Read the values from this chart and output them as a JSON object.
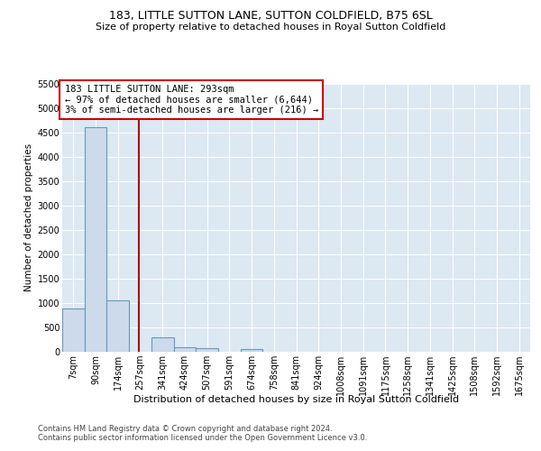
{
  "title1": "183, LITTLE SUTTON LANE, SUTTON COLDFIELD, B75 6SL",
  "title2": "Size of property relative to detached houses in Royal Sutton Coldfield",
  "xlabel": "Distribution of detached houses by size in Royal Sutton Coldfield",
  "ylabel": "Number of detached properties",
  "footnote1": "Contains HM Land Registry data © Crown copyright and database right 2024.",
  "footnote2": "Contains public sector information licensed under the Open Government Licence v3.0.",
  "annotation_line1": "183 LITTLE SUTTON LANE: 293sqm",
  "annotation_line2": "← 97% of detached houses are smaller (6,644)",
  "annotation_line3": "3% of semi-detached houses are larger (216) →",
  "ylim": [
    0,
    5500
  ],
  "bar_color": "#ccdaeb",
  "bar_edge_color": "#6699bb",
  "red_line_color": "#aa0000",
  "annotation_box_edge_color": "#cc0000",
  "background_color": "#dce8f2",
  "grid_color": "#ffffff",
  "categories": [
    "7sqm",
    "90sqm",
    "174sqm",
    "257sqm",
    "341sqm",
    "424sqm",
    "507sqm",
    "591sqm",
    "674sqm",
    "758sqm",
    "841sqm",
    "924sqm",
    "1008sqm",
    "1091sqm",
    "1175sqm",
    "1258sqm",
    "1341sqm",
    "1425sqm",
    "1508sqm",
    "1592sqm",
    "1675sqm"
  ],
  "bar_values": [
    880,
    4600,
    1060,
    0,
    290,
    90,
    75,
    0,
    55,
    0,
    0,
    0,
    0,
    0,
    0,
    0,
    0,
    0,
    0,
    0,
    0
  ],
  "bin_edges": [
    7,
    90,
    174,
    257,
    341,
    424,
    507,
    591,
    674,
    758,
    841,
    924,
    1008,
    1091,
    1175,
    1258,
    1341,
    1425,
    1508,
    1592,
    1675
  ],
  "bin_width": 83,
  "red_line_x": 293,
  "yticks": [
    0,
    500,
    1000,
    1500,
    2000,
    2500,
    3000,
    3500,
    4000,
    4500,
    5000,
    5500
  ],
  "title1_fontsize": 9,
  "title2_fontsize": 8,
  "ylabel_fontsize": 7.5,
  "xlabel_fontsize": 8,
  "tick_fontsize": 7,
  "annotation_fontsize": 7.5,
  "footnote_fontsize": 6
}
